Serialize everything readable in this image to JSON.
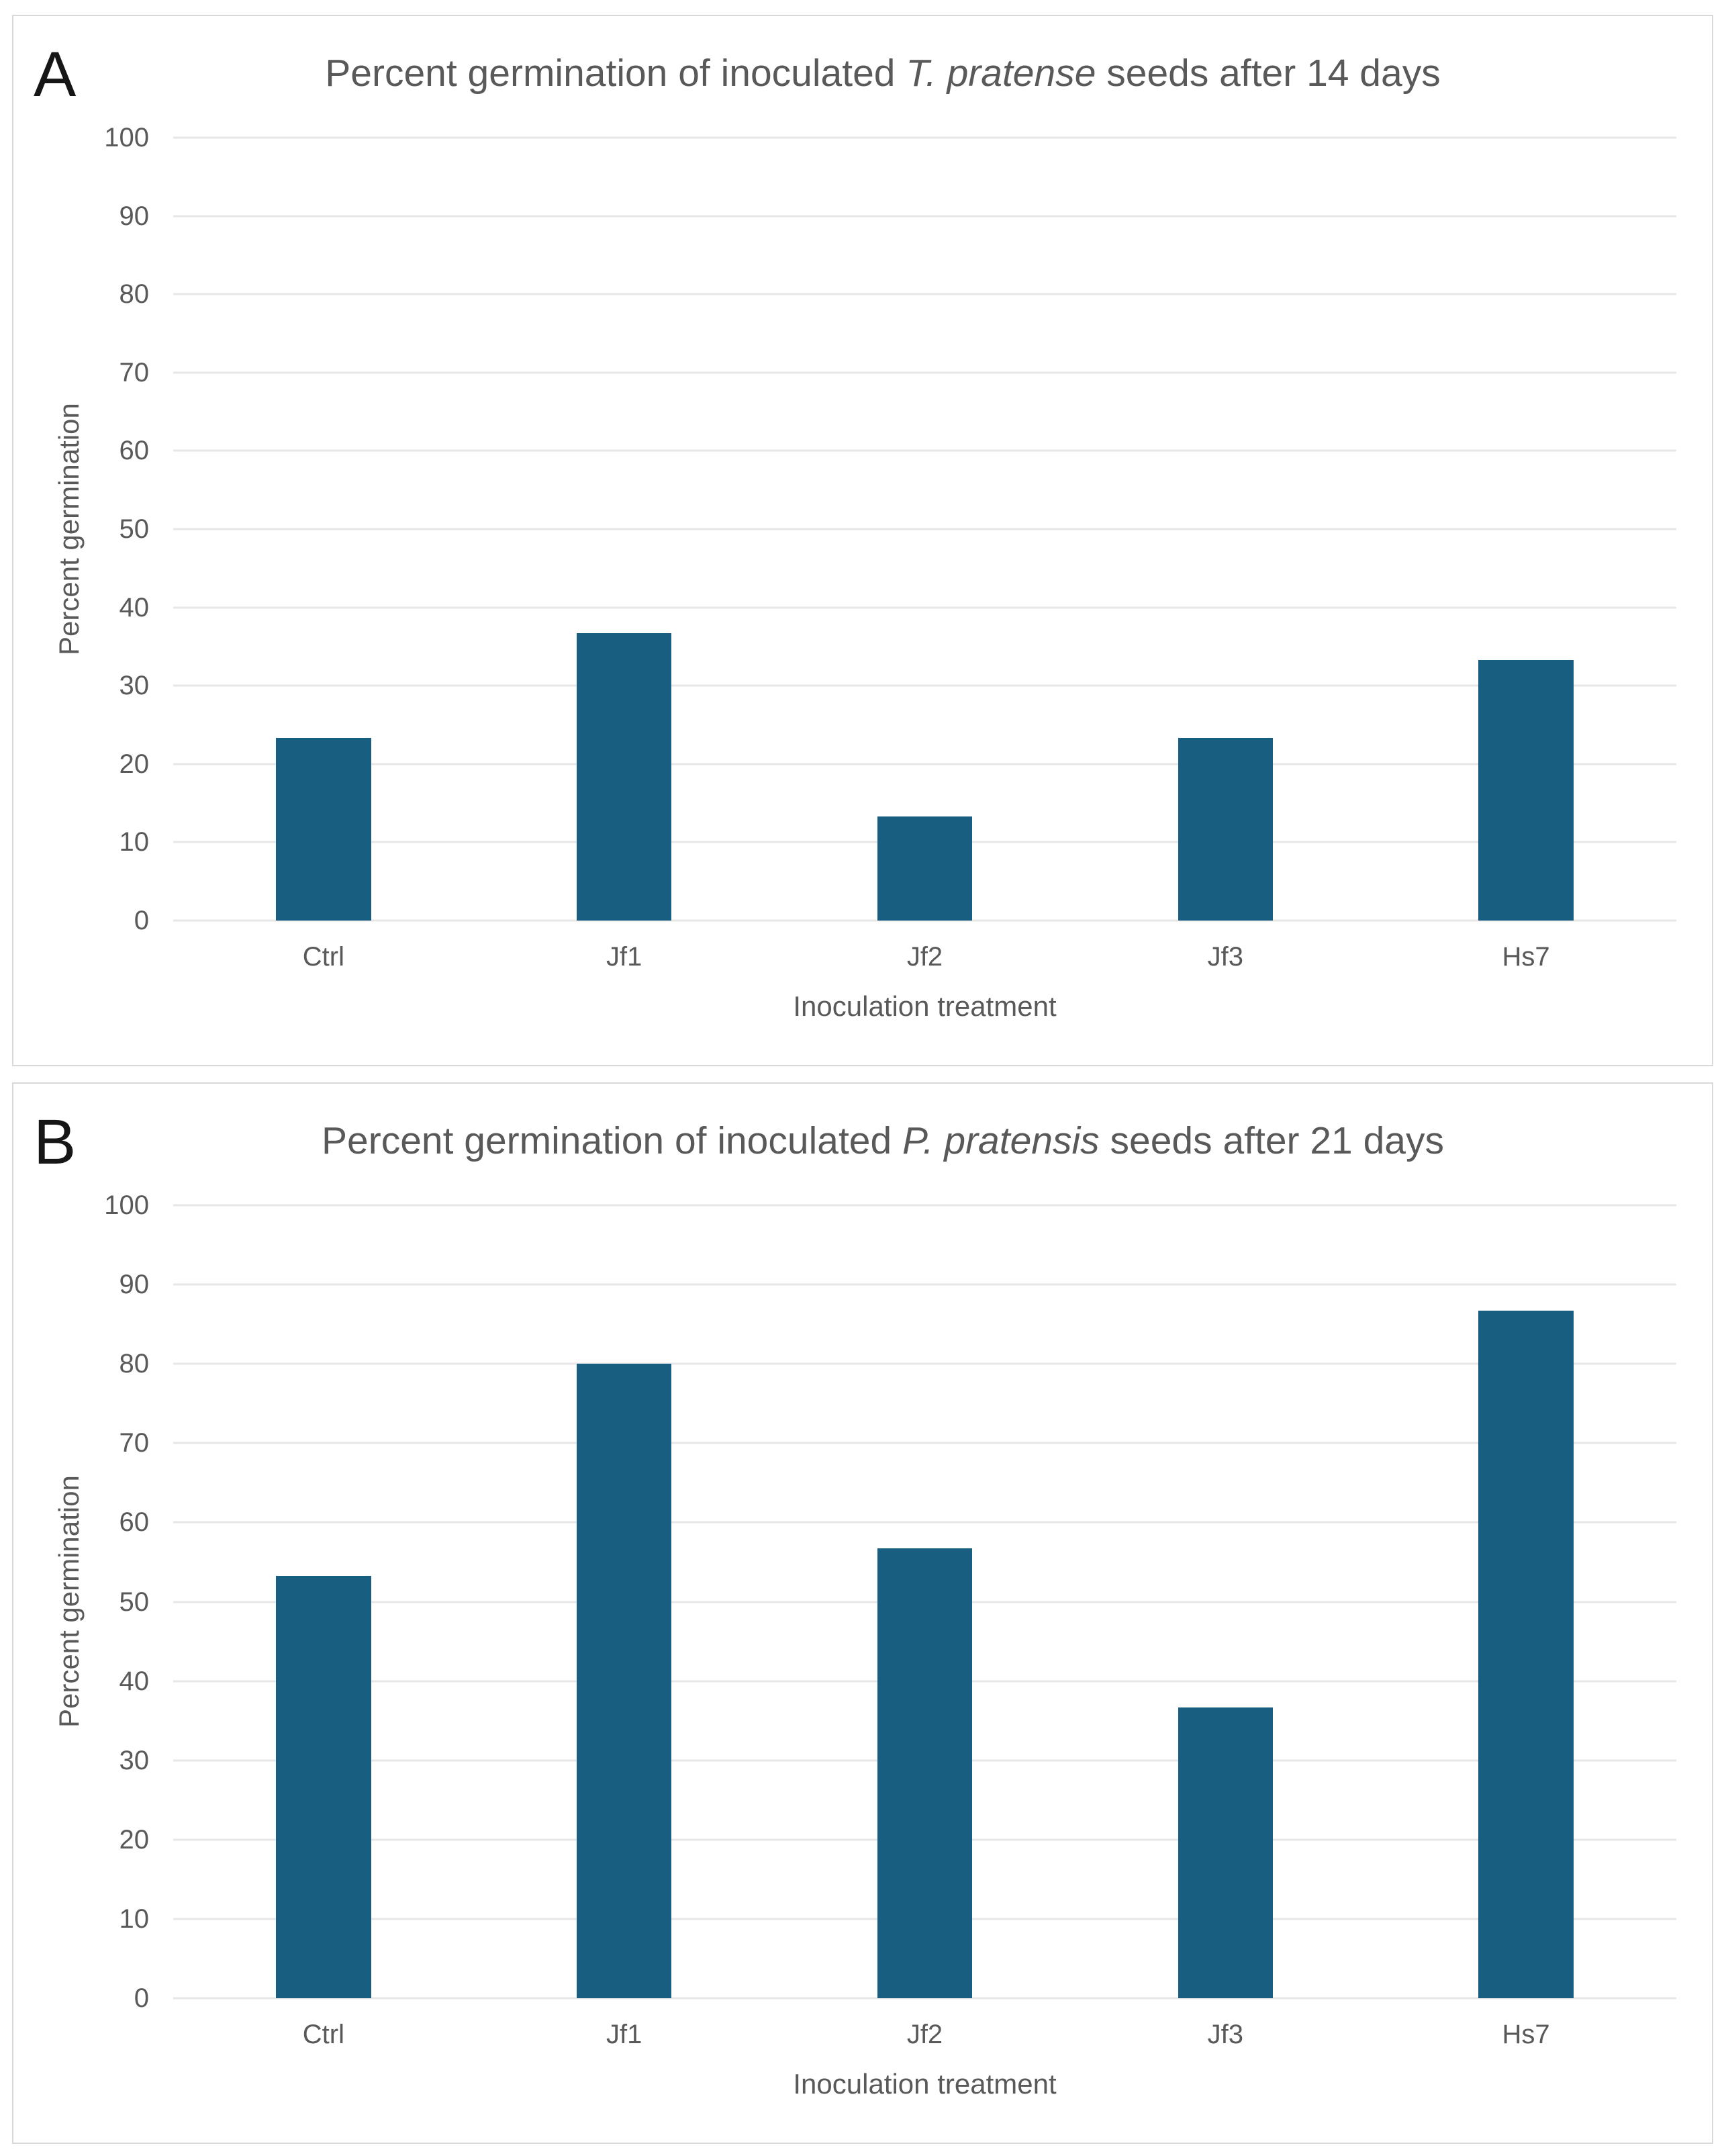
{
  "colors": {
    "bar": "#175e80",
    "gridline": "#e7e7e7",
    "text": "#595959",
    "panel_border": "#d9d9d9",
    "panel_label": "#161616"
  },
  "chart_data": [
    {
      "type": "bar",
      "panel_label": "A",
      "title_prefix": "Percent germination of inoculated ",
      "title_italic": "T. pratense",
      "title_suffix": " seeds after 14 days",
      "categories": [
        "Ctrl",
        "Jf1",
        "Jf2",
        "Jf3",
        "Hs7"
      ],
      "values": [
        23.3,
        36.7,
        13.3,
        23.3,
        33.3
      ],
      "xlabel": "Inoculation treatment",
      "ylabel": "Percent germination",
      "ylim": [
        0,
        100
      ],
      "y_ticks": [
        0,
        10,
        20,
        30,
        40,
        50,
        60,
        70,
        80,
        90,
        100
      ],
      "grid": "horizontal",
      "legend": "none"
    },
    {
      "type": "bar",
      "panel_label": "B",
      "title_prefix": "Percent germination of inoculated ",
      "title_italic": "P. pratensis",
      "title_suffix": " seeds after 21 days",
      "categories": [
        "Ctrl",
        "Jf1",
        "Jf2",
        "Jf3",
        "Hs7"
      ],
      "values": [
        53.3,
        80,
        56.7,
        36.7,
        86.7
      ],
      "xlabel": "Inoculation treatment",
      "ylabel": "Percent germination",
      "ylim": [
        0,
        100
      ],
      "y_ticks": [
        0,
        10,
        20,
        30,
        40,
        50,
        60,
        70,
        80,
        90,
        100
      ],
      "grid": "horizontal",
      "legend": "none"
    }
  ]
}
